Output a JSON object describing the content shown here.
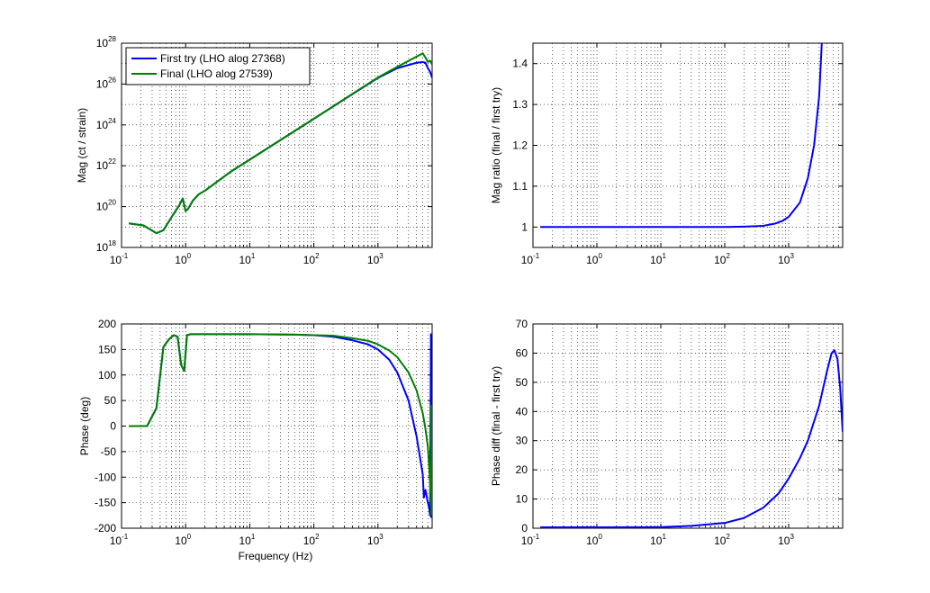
{
  "figure": {
    "x_axis_label": "Frequency (Hz)"
  },
  "chart_data": [
    {
      "id": "mag",
      "type": "line",
      "xscale": "log",
      "yscale": "log",
      "xlim": [
        0.1,
        7000
      ],
      "ylim": [
        1e+18,
        1e+28
      ],
      "xlabel": "",
      "ylabel": "Mag (ct / strain)",
      "grid": true,
      "legend": {
        "placement": "top-left",
        "entries": [
          "First try (LHO alog 27368)",
          "Final (LHO alog 27539)"
        ]
      },
      "xticks": [
        {
          "base": "10",
          "exp": "-1",
          "value": 0.1
        },
        {
          "base": "10",
          "exp": "0",
          "value": 1
        },
        {
          "base": "10",
          "exp": "1",
          "value": 10
        },
        {
          "base": "10",
          "exp": "2",
          "value": 100
        },
        {
          "base": "10",
          "exp": "3",
          "value": 1000
        }
      ],
      "yticks": [
        {
          "base": "10",
          "exp": "18",
          "value": 1e+18
        },
        {
          "base": "10",
          "exp": "20",
          "value": 1e+20
        },
        {
          "base": "10",
          "exp": "22",
          "value": 1e+22
        },
        {
          "base": "10",
          "exp": "24",
          "value": 1e+24
        },
        {
          "base": "10",
          "exp": "26",
          "value": 1e+26
        },
        {
          "base": "10",
          "exp": "28",
          "value": 1e+28
        }
      ],
      "series": [
        {
          "name": "First try (LHO alog 27368)",
          "color": "#0000ff",
          "x": [
            0.13,
            0.22,
            0.35,
            0.45,
            0.6,
            0.8,
            0.9,
            1.0,
            1.1,
            1.3,
            1.6,
            2,
            5,
            10,
            100,
            1000,
            2000,
            4000,
            5000,
            5500,
            6000,
            6500,
            7000
          ],
          "y": [
            1.5e+19,
            1.2e+19,
            5e+18,
            7e+18,
            3e+19,
            1.2e+20,
            2.5e+20,
            6e+19,
            8e+19,
            2e+20,
            4e+20,
            6e+20,
            5e+21,
            2e+22,
            2e+24,
            2e+26,
            6e+26,
            1.1e+27,
            1.2e+27,
            1.1e+27,
            6e+26,
            4e+26,
            2e+26
          ]
        },
        {
          "name": "Final (LHO alog 27539)",
          "color": "#008000",
          "x": [
            0.13,
            0.22,
            0.35,
            0.45,
            0.6,
            0.8,
            0.9,
            1.0,
            1.1,
            1.3,
            1.6,
            2,
            5,
            10,
            100,
            1000,
            2000,
            4000,
            5000,
            5500,
            6000,
            6500,
            7000
          ],
          "y": [
            1.5e+19,
            1.2e+19,
            5e+18,
            7e+18,
            3e+19,
            1.2e+20,
            2.5e+20,
            6e+19,
            8e+19,
            2e+20,
            4e+20,
            6e+20,
            5e+21,
            2e+22,
            2e+24,
            2.1e+26,
            7e+26,
            2.2e+27,
            3.2e+27,
            2e+27,
            1.2e+27,
            1.4e+27,
            9e+26
          ]
        }
      ]
    },
    {
      "id": "ratio",
      "type": "line",
      "xscale": "log",
      "yscale": "linear",
      "xlim": [
        0.1,
        7000
      ],
      "ylim": [
        0.95,
        1.45
      ],
      "xlabel": "",
      "ylabel": "Mag ratio (final / first try)",
      "grid": true,
      "xticks": [
        {
          "base": "10",
          "exp": "-1",
          "value": 0.1
        },
        {
          "base": "10",
          "exp": "0",
          "value": 1
        },
        {
          "base": "10",
          "exp": "1",
          "value": 10
        },
        {
          "base": "10",
          "exp": "2",
          "value": 100
        },
        {
          "base": "10",
          "exp": "3",
          "value": 1000
        }
      ],
      "yticks": [
        {
          "label": "1",
          "value": 1
        },
        {
          "label": "1.1",
          "value": 1.1
        },
        {
          "label": "1.2",
          "value": 1.2
        },
        {
          "label": "1.3",
          "value": 1.3
        },
        {
          "label": "1.4",
          "value": 1.4
        }
      ],
      "series": [
        {
          "name": "",
          "color": "#0000ff",
          "x": [
            0.13,
            1,
            10,
            100,
            200,
            400,
            600,
            800,
            1000,
            1500,
            2000,
            2500,
            3000,
            3300
          ],
          "y": [
            1.0,
            1.0,
            1.0,
            1.0,
            1.001,
            1.003,
            1.008,
            1.015,
            1.025,
            1.06,
            1.12,
            1.2,
            1.32,
            1.45
          ]
        }
      ]
    },
    {
      "id": "phase",
      "type": "line",
      "xscale": "log",
      "yscale": "linear",
      "xlim": [
        0.1,
        7000
      ],
      "ylim": [
        -200,
        200
      ],
      "xlabel": "Frequency (Hz)",
      "ylabel": "Phase (deg)",
      "grid": true,
      "xticks": [
        {
          "base": "10",
          "exp": "-1",
          "value": 0.1
        },
        {
          "base": "10",
          "exp": "0",
          "value": 1
        },
        {
          "base": "10",
          "exp": "1",
          "value": 10
        },
        {
          "base": "10",
          "exp": "2",
          "value": 100
        },
        {
          "base": "10",
          "exp": "3",
          "value": 1000
        }
      ],
      "yticks": [
        {
          "label": "-200",
          "value": -200
        },
        {
          "label": "-150",
          "value": -150
        },
        {
          "label": "-100",
          "value": -100
        },
        {
          "label": "-50",
          "value": -50
        },
        {
          "label": "0",
          "value": 0
        },
        {
          "label": "50",
          "value": 50
        },
        {
          "label": "100",
          "value": 100
        },
        {
          "label": "150",
          "value": 150
        },
        {
          "label": "200",
          "value": 200
        }
      ],
      "series": [
        {
          "name": "First try (LHO alog 27368)",
          "color": "#0000ff",
          "x": [
            0.13,
            0.25,
            0.35,
            0.45,
            0.55,
            0.65,
            0.75,
            0.85,
            0.95,
            1.05,
            1.2,
            2,
            10,
            50,
            100,
            200,
            400,
            700,
            1000,
            1500,
            2000,
            3000,
            4000,
            5000,
            5200,
            5500,
            6000,
            6300,
            6500,
            6700,
            6750,
            6800
          ],
          "y": [
            0,
            0,
            35,
            155,
            170,
            178,
            175,
            120,
            108,
            178,
            180,
            180,
            180,
            179,
            178,
            175,
            168,
            160,
            150,
            130,
            105,
            50,
            -20,
            -95,
            -140,
            -125,
            -150,
            -160,
            -175,
            180,
            30,
            -180
          ]
        },
        {
          "name": "Final (LHO alog 27539)",
          "color": "#008000",
          "x": [
            0.13,
            0.25,
            0.35,
            0.45,
            0.55,
            0.65,
            0.75,
            0.85,
            0.95,
            1.05,
            1.2,
            2,
            10,
            50,
            100,
            200,
            400,
            700,
            1000,
            1500,
            2000,
            3000,
            4000,
            5000,
            5500,
            6000,
            6300,
            6500,
            6700,
            6750,
            6800
          ],
          "y": [
            0,
            0,
            35,
            155,
            170,
            178,
            175,
            120,
            108,
            178,
            180,
            180,
            180,
            179,
            178,
            177,
            172,
            167,
            160,
            148,
            135,
            105,
            70,
            25,
            -5,
            -40,
            -80,
            -110,
            -155,
            40,
            -175
          ]
        }
      ]
    },
    {
      "id": "phasediff",
      "type": "line",
      "xscale": "log",
      "yscale": "linear",
      "xlim": [
        0.1,
        7000
      ],
      "ylim": [
        0,
        70
      ],
      "xlabel": "",
      "ylabel": "Phase diff (final - first try)",
      "grid": true,
      "xticks": [
        {
          "base": "10",
          "exp": "-1",
          "value": 0.1
        },
        {
          "base": "10",
          "exp": "0",
          "value": 1
        },
        {
          "base": "10",
          "exp": "1",
          "value": 10
        },
        {
          "base": "10",
          "exp": "2",
          "value": 100
        },
        {
          "base": "10",
          "exp": "3",
          "value": 1000
        }
      ],
      "yticks": [
        {
          "label": "0",
          "value": 0
        },
        {
          "label": "10",
          "value": 10
        },
        {
          "label": "20",
          "value": 20
        },
        {
          "label": "30",
          "value": 30
        },
        {
          "label": "40",
          "value": 40
        },
        {
          "label": "50",
          "value": 50
        },
        {
          "label": "60",
          "value": 60
        },
        {
          "label": "70",
          "value": 70
        }
      ],
      "series": [
        {
          "name": "",
          "color": "#0000ff",
          "x": [
            0.13,
            1,
            10,
            30,
            100,
            200,
            400,
            700,
            1000,
            1500,
            2000,
            3000,
            4000,
            4700,
            5200,
            5800,
            6400,
            7000
          ],
          "y": [
            0.3,
            0.3,
            0.4,
            0.8,
            1.8,
            3.5,
            7,
            12,
            17,
            24,
            30,
            42,
            54,
            60,
            61,
            58,
            48,
            33
          ]
        }
      ]
    }
  ]
}
